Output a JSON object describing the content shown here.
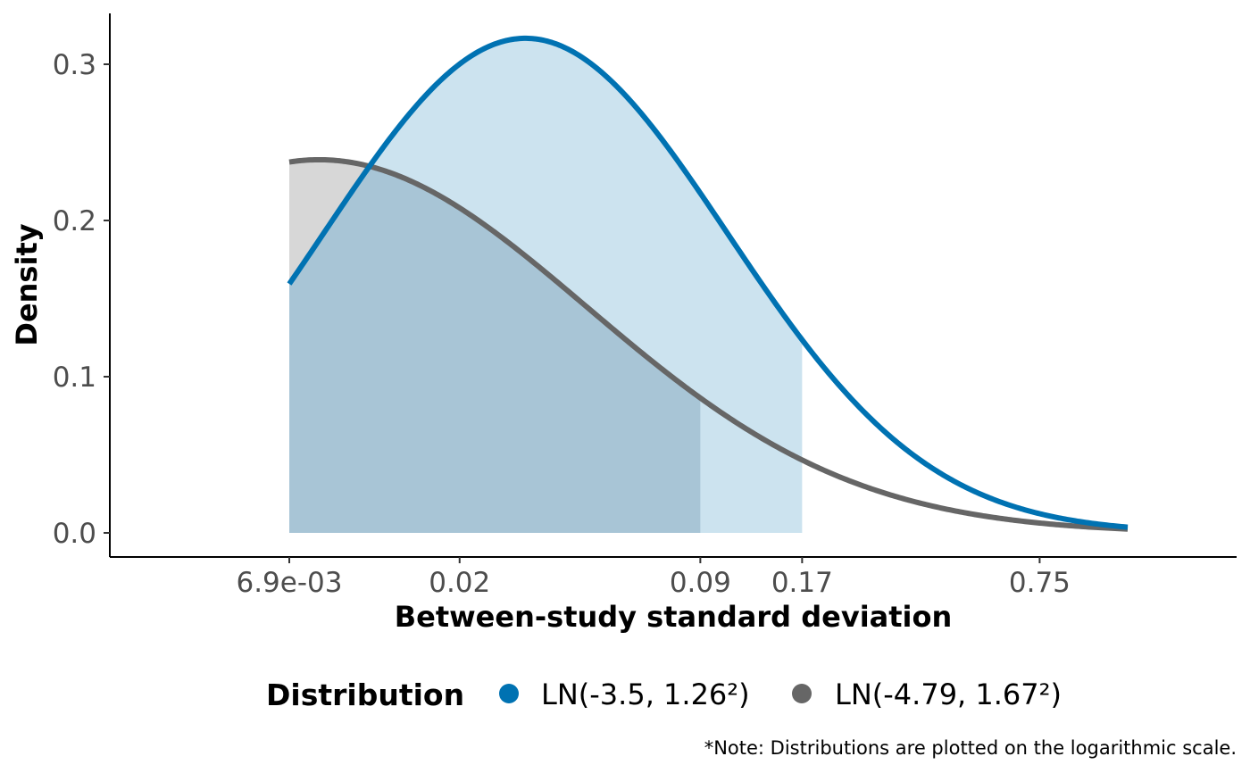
{
  "chart_data": {
    "type": "area",
    "x_scale": "log",
    "xlabel": "Between-study standard deviation",
    "ylabel": "Density",
    "ylim": [
      0,
      0.32
    ],
    "x_ticks": [
      {
        "value": 0.0069,
        "label": "6.9e-03"
      },
      {
        "value": 0.02,
        "label": "0.02"
      },
      {
        "value": 0.09,
        "label": "0.09"
      },
      {
        "value": 0.17,
        "label": "0.17"
      },
      {
        "value": 0.75,
        "label": "0.75"
      }
    ],
    "y_ticks": [
      {
        "value": 0.0,
        "label": "0.0"
      },
      {
        "value": 0.1,
        "label": "0.1"
      },
      {
        "value": 0.2,
        "label": "0.2"
      },
      {
        "value": 0.3,
        "label": "0.3"
      }
    ],
    "x_range": [
      0.0069,
      1.3
    ],
    "legend_title": "Distribution",
    "legend_position": "bottom",
    "series": [
      {
        "name": "LN(-3.5, 1.26²)",
        "meanlog": -3.5,
        "sdlog": 1.26,
        "color": "#0072B2",
        "fill": "#CCE3EF",
        "shade_to": 0.17
      },
      {
        "name": "LN(-4.79, 1.67²)",
        "meanlog": -4.79,
        "sdlog": 1.67,
        "color": "#666666",
        "fill": "#BEBEBE",
        "shade_to": 0.09
      }
    ],
    "grid": false
  },
  "note": "*Note: Distributions are plotted on the logarithmic scale."
}
